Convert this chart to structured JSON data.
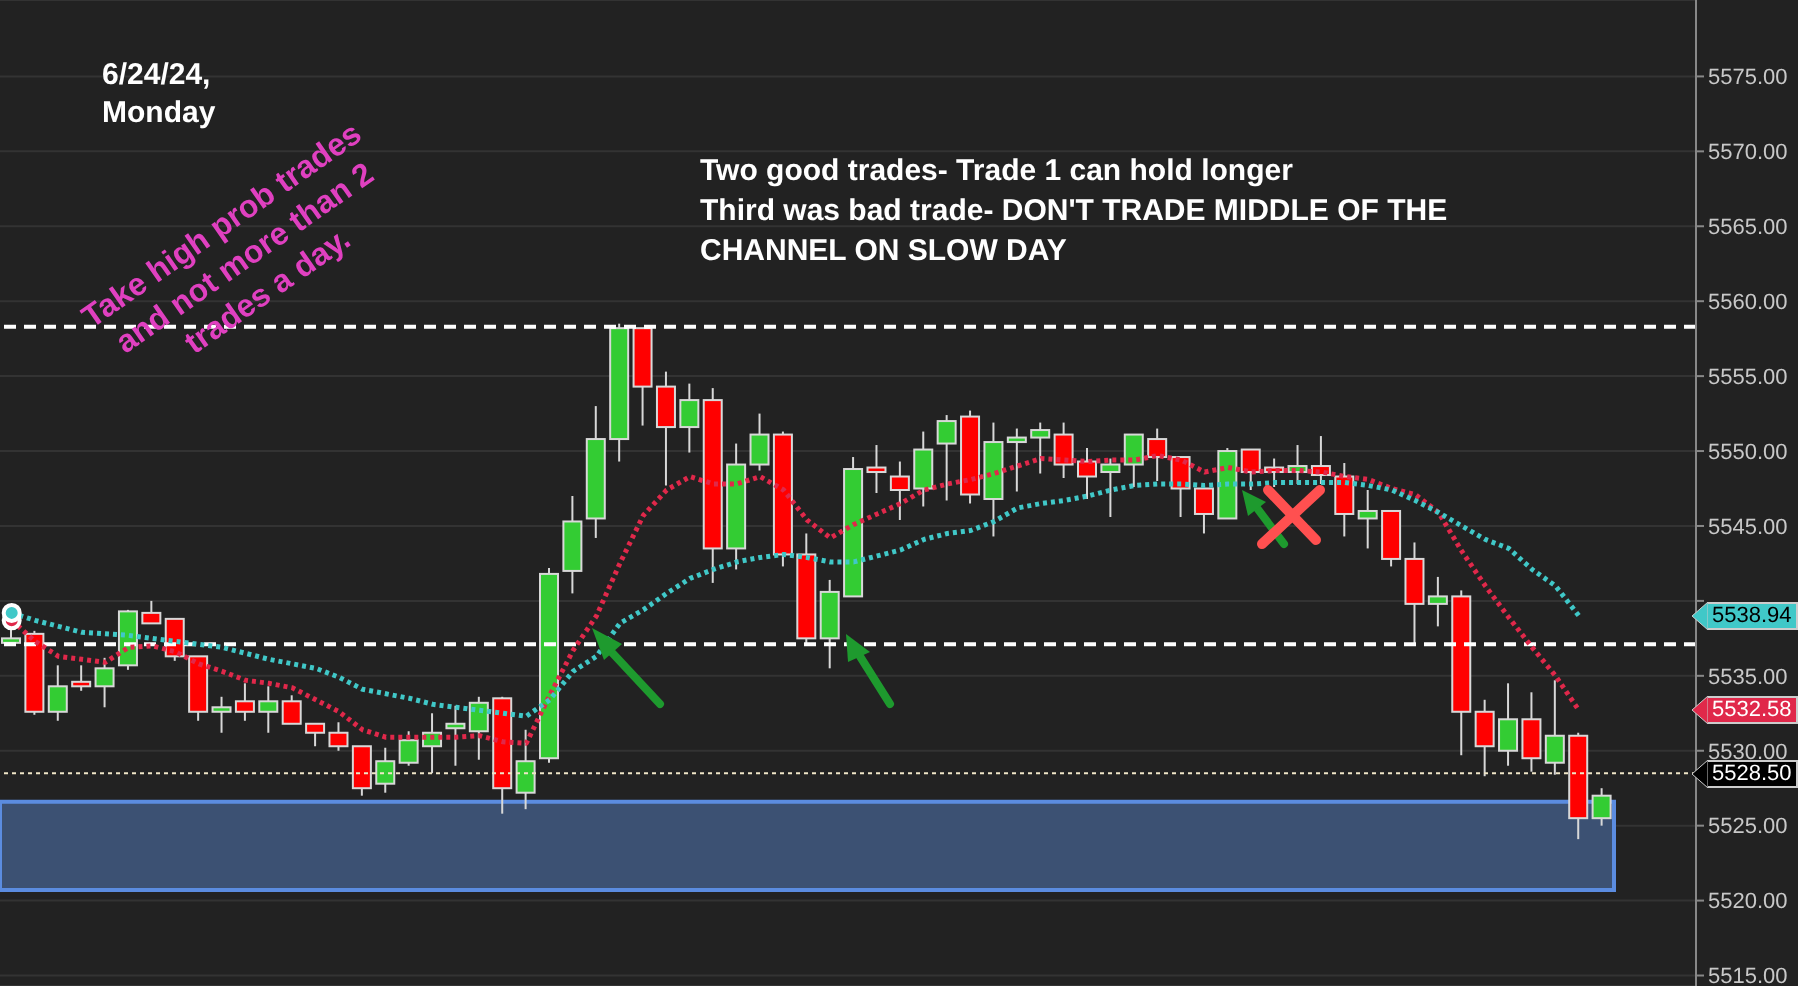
{
  "chart_data": {
    "type": "candlestick",
    "title": "6/24/24,\nMonday",
    "categories": [
      null,
      null,
      null,
      null,
      null,
      null,
      null,
      null,
      null,
      null,
      null,
      null,
      null,
      null,
      null,
      null,
      null,
      null,
      null,
      null,
      null,
      null,
      null,
      null,
      null,
      null,
      null,
      null,
      null,
      null,
      null,
      null,
      null,
      null,
      null,
      null,
      null,
      null,
      null,
      null,
      null,
      null,
      null,
      null,
      null,
      null,
      null,
      null,
      null,
      null,
      null,
      null,
      null,
      null,
      null,
      null,
      null,
      null,
      null,
      null,
      null,
      null,
      null,
      null,
      null,
      null,
      null,
      null,
      null
    ],
    "ohlc": [
      [
        5537.2,
        5538.2,
        5537.0,
        5537.5
      ],
      [
        5537.8,
        5538.0,
        5532.4,
        5532.6
      ],
      [
        5532.6,
        5535.7,
        5532.0,
        5534.3
      ],
      [
        5534.6,
        5535.7,
        5534.0,
        5534.3
      ],
      [
        5534.3,
        5536.2,
        5532.9,
        5535.5
      ],
      [
        5535.7,
        5539.4,
        5535.4,
        5539.3
      ],
      [
        5539.2,
        5540.0,
        5538.5,
        5538.5
      ],
      [
        5538.8,
        5538.8,
        5536.0,
        5536.3
      ],
      [
        5536.3,
        5536.3,
        5532.0,
        5532.6
      ],
      [
        5532.6,
        5533.6,
        5531.2,
        5532.9
      ],
      [
        5533.3,
        5534.5,
        5532.0,
        5532.6
      ],
      [
        5532.6,
        5534.3,
        5531.2,
        5533.3
      ],
      [
        5533.3,
        5533.7,
        5531.8,
        5531.8
      ],
      [
        5531.8,
        5531.8,
        5530.3,
        5531.2
      ],
      [
        5531.2,
        5531.9,
        5530.0,
        5530.3
      ],
      [
        5530.3,
        5530.3,
        5527.0,
        5527.5
      ],
      [
        5527.8,
        5530.2,
        5527.2,
        5529.3
      ],
      [
        5529.2,
        5531.3,
        5529.0,
        5530.7
      ],
      [
        5530.3,
        5532.5,
        5528.5,
        5531.2
      ],
      [
        5531.5,
        5533.0,
        5529.0,
        5531.8
      ],
      [
        5531.3,
        5533.6,
        5529.4,
        5533.2
      ],
      [
        5533.5,
        5533.6,
        5525.8,
        5527.5
      ],
      [
        5527.2,
        5531.4,
        5526.1,
        5529.3
      ],
      [
        5529.5,
        5542.2,
        5529.2,
        5541.8
      ],
      [
        5542.0,
        5547.0,
        5540.5,
        5545.3
      ],
      [
        5545.5,
        5553.0,
        5544.2,
        5550.8
      ],
      [
        5550.8,
        5558.5,
        5549.3,
        5558.2
      ],
      [
        5558.2,
        5558.2,
        5551.7,
        5554.3
      ],
      [
        5554.3,
        5555.3,
        5547.7,
        5551.6
      ],
      [
        5551.6,
        5554.5,
        5549.9,
        5553.4
      ],
      [
        5553.4,
        5554.2,
        5541.2,
        5543.5
      ],
      [
        5543.5,
        5550.5,
        5542.1,
        5549.1
      ],
      [
        5549.1,
        5552.5,
        5548.7,
        5551.1
      ],
      [
        5551.1,
        5551.3,
        5542.3,
        5543.1
      ],
      [
        5543.1,
        5544.5,
        5537.0,
        5537.5
      ],
      [
        5537.5,
        5541.4,
        5535.5,
        5540.6
      ],
      [
        5540.3,
        5549.6,
        5540.3,
        5548.8
      ],
      [
        5548.9,
        5550.4,
        5547.2,
        5548.6
      ],
      [
        5548.3,
        5549.3,
        5545.4,
        5547.4
      ],
      [
        5547.5,
        5551.3,
        5546.3,
        5550.1
      ],
      [
        5550.5,
        5552.4,
        5546.7,
        5552.0
      ],
      [
        5552.3,
        5552.7,
        5546.5,
        5547.1
      ],
      [
        5546.8,
        5551.9,
        5544.3,
        5550.6
      ],
      [
        5550.6,
        5551.5,
        5547.3,
        5550.9
      ],
      [
        5550.9,
        5551.9,
        5548.5,
        5551.4
      ],
      [
        5551.1,
        5551.9,
        5548.2,
        5549.1
      ],
      [
        5549.3,
        5550.2,
        5546.8,
        5548.3
      ],
      [
        5548.6,
        5549.5,
        5545.6,
        5549.1
      ],
      [
        5549.1,
        5551.1,
        5547.6,
        5551.1
      ],
      [
        5550.8,
        5551.5,
        5548.0,
        5549.6
      ],
      [
        5549.6,
        5549.6,
        5545.6,
        5547.5
      ],
      [
        5547.5,
        5547.5,
        5544.5,
        5545.8
      ],
      [
        5545.5,
        5550.2,
        5545.5,
        5550.0
      ],
      [
        5550.1,
        5550.1,
        5547.4,
        5548.6
      ],
      [
        5548.9,
        5549.5,
        5547.6,
        5548.6
      ],
      [
        5548.6,
        5550.4,
        5547.8,
        5549.0
      ],
      [
        5549.0,
        5551.0,
        5547.8,
        5548.4
      ],
      [
        5548.3,
        5549.2,
        5544.3,
        5545.8
      ],
      [
        5545.5,
        5547.4,
        5543.5,
        5546.0
      ],
      [
        5546.0,
        5546.0,
        5542.3,
        5542.8
      ],
      [
        5542.8,
        5543.9,
        5537.0,
        5539.8
      ],
      [
        5539.8,
        5541.6,
        5538.3,
        5540.3
      ],
      [
        5540.3,
        5540.7,
        5529.7,
        5532.6
      ],
      [
        5532.6,
        5533.4,
        5528.3,
        5530.3
      ],
      [
        5530.0,
        5534.5,
        5529.0,
        5532.1
      ],
      [
        5532.1,
        5533.9,
        5528.6,
        5529.5
      ],
      [
        5529.2,
        5534.7,
        5528.4,
        5531.0
      ],
      [
        5531.0,
        5531.2,
        5524.1,
        5525.5
      ],
      [
        5525.5,
        5527.5,
        5525.0,
        5527.0
      ]
    ],
    "series": [
      {
        "type": "line",
        "color": "#e0284a",
        "line_style": "dotted",
        "values": [
          5538.7,
          5537.3,
          5536.3,
          5536.1,
          5535.9,
          5536.9,
          5537.0,
          5536.6,
          5535.8,
          5535.3,
          5534.7,
          5534.5,
          5534.2,
          5533.4,
          5532.6,
          5531.4,
          5530.9,
          5530.9,
          5530.9,
          5530.9,
          5531.0,
          5530.6,
          5530.5,
          5533.7,
          5536.7,
          5539.0,
          5542.5,
          5545.7,
          5547.4,
          5548.3,
          5547.8,
          5547.8,
          5548.3,
          5547.4,
          5545.4,
          5544.2,
          5545.1,
          5545.8,
          5546.5,
          5547.4,
          5547.8,
          5548.1,
          5548.5,
          5549.0,
          5549.5,
          5549.4,
          5549.3,
          5549.4,
          5549.4,
          5549.7,
          5549.4,
          5548.6,
          5548.9,
          5548.6,
          5548.7,
          5548.7,
          5548.6,
          5548.3,
          5548.1,
          5547.5,
          5547.1,
          5545.9,
          5543.3,
          5541.0,
          5538.9,
          5536.9,
          5535.0,
          5532.7,
          null
        ]
      },
      {
        "type": "line",
        "color": "#40c8c8",
        "line_style": "dotted",
        "values": [
          5539.2,
          5538.7,
          5538.3,
          5537.9,
          5537.8,
          5537.7,
          5537.5,
          5537.3,
          5537.1,
          5536.9,
          5536.5,
          5536.1,
          5535.8,
          5535.5,
          5534.9,
          5534.1,
          5533.8,
          5533.5,
          5533.1,
          5532.9,
          5532.7,
          5532.5,
          5532.3,
          5533.4,
          5535.3,
          5536.3,
          5538.5,
          5539.4,
          5540.5,
          5541.5,
          5542.1,
          5542.6,
          5542.9,
          5543.1,
          5542.9,
          5542.6,
          5542.6,
          5543.0,
          5543.4,
          5544.1,
          5544.5,
          5544.7,
          5545.3,
          5546.2,
          5546.5,
          5546.7,
          5547.0,
          5547.4,
          5547.7,
          5547.8,
          5547.8,
          5547.7,
          5547.8,
          5547.8,
          5547.9,
          5547.9,
          5547.9,
          5547.9,
          5547.7,
          5547.4,
          5546.7,
          5545.9,
          5545.0,
          5544.1,
          5543.5,
          5542.1,
          5541.0,
          5539.0,
          null
        ]
      }
    ],
    "ylim": [
      5514.3,
      5580.1
    ],
    "yticks": [
      {
        "value": 5515,
        "label": "5515.00"
      },
      {
        "value": 5520,
        "label": "5520.00"
      },
      {
        "value": 5525,
        "label": "5525.00"
      },
      {
        "value": 5530,
        "label": "5530.00"
      },
      {
        "value": 5535,
        "label": "5535.00"
      },
      {
        "value": 5540,
        "label": null
      },
      {
        "value": 5545,
        "label": "5545.00"
      },
      {
        "value": 5550,
        "label": "5550.00"
      },
      {
        "value": 5555,
        "label": "5555.00"
      },
      {
        "value": 5560,
        "label": "5560.00"
      },
      {
        "value": 5565,
        "label": "5565.00"
      },
      {
        "value": 5570,
        "label": "5570.00"
      },
      {
        "value": 5575,
        "label": "5575.00"
      }
    ],
    "tick_labels": "y",
    "grid": "y",
    "marker": "none",
    "ref_lines": [
      {
        "axis": "y",
        "value": 5558.3,
        "color": "#ffffff",
        "line_style": "dashed"
      },
      {
        "axis": "y",
        "value": 5537.1,
        "color": "#ffffff",
        "line_style": "dashed"
      },
      {
        "axis": "y",
        "value": 5528.5,
        "label": "5528.50",
        "color": "#f0e6c8",
        "line_style": "dotted"
      }
    ],
    "bands": [
      {
        "axis": "y",
        "from": 5520.7,
        "to": 5526.6,
        "color": "#3c5173"
      }
    ],
    "annotations": [
      "Two good trades- Trade 1 can hold longer\nThird was bad trade- DON'T TRADE MIDDLE OF THE\nCHANNEL ON SLOW DAY",
      "Take high prob trades\nand not more than 2\ntrades a day.",
      "5532.58",
      "5538.94"
    ]
  }
}
